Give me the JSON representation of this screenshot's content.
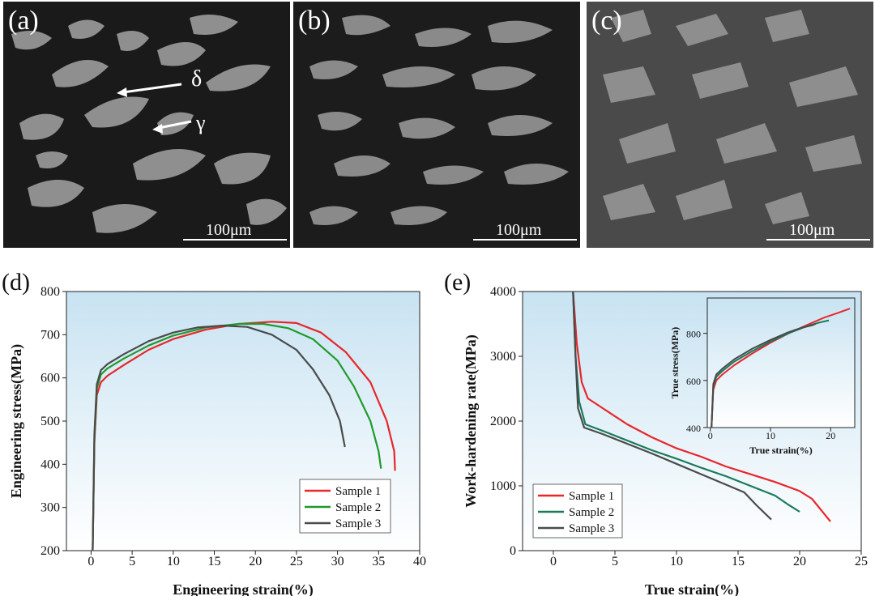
{
  "panels": {
    "a": {
      "label": "(a)",
      "annotations": [
        "δ",
        "γ"
      ],
      "scalebar": "100μm"
    },
    "b": {
      "label": "(b)",
      "scalebar": "100μm"
    },
    "c": {
      "label": "(c)",
      "scalebar": "100μm"
    },
    "d": {
      "label": "(d)"
    },
    "e": {
      "label": "(e)"
    }
  },
  "colors": {
    "sample1": "#e8262b",
    "sample2_d": "#1f9a2a",
    "sample2_e": "#1a7a5a",
    "sample3": "#4a4a4a",
    "plotbg_top": "#c8e3f2",
    "plotbg_bottom": "#ffffff"
  },
  "chart_data": [
    {
      "id": "d",
      "type": "line",
      "xlabel": "Engineering strain(%)",
      "ylabel": "Engineering stress(MPa)",
      "xlim": [
        -3,
        40
      ],
      "ylim": [
        200,
        800
      ],
      "xticks": [
        "0",
        "5",
        "10",
        "15",
        "20",
        "25",
        "30",
        "35",
        "40"
      ],
      "yticks": [
        "200",
        "300",
        "400",
        "500",
        "600",
        "700",
        "800"
      ],
      "legend": "bottom-right",
      "series": [
        {
          "name": "Sample 1",
          "color": "#e8262b",
          "points": [
            [
              0.2,
              200
            ],
            [
              0.4,
              450
            ],
            [
              0.7,
              560
            ],
            [
              1.2,
              590
            ],
            [
              2,
              605
            ],
            [
              4,
              630
            ],
            [
              7,
              665
            ],
            [
              10,
              690
            ],
            [
              14,
              712
            ],
            [
              18,
              725
            ],
            [
              22,
              730
            ],
            [
              25,
              727
            ],
            [
              28,
              705
            ],
            [
              31,
              660
            ],
            [
              34,
              590
            ],
            [
              36,
              500
            ],
            [
              36.9,
              430
            ],
            [
              37,
              385
            ]
          ]
        },
        {
          "name": "Sample 2",
          "color": "#1f9a2a",
          "points": [
            [
              0.2,
              200
            ],
            [
              0.4,
              460
            ],
            [
              0.7,
              575
            ],
            [
              1.2,
              608
            ],
            [
              2,
              622
            ],
            [
              4,
              645
            ],
            [
              7,
              675
            ],
            [
              10,
              698
            ],
            [
              14,
              717
            ],
            [
              18,
              725
            ],
            [
              21,
              725
            ],
            [
              24,
              715
            ],
            [
              27,
              690
            ],
            [
              30,
              640
            ],
            [
              32,
              580
            ],
            [
              34,
              500
            ],
            [
              35,
              430
            ],
            [
              35.3,
              390
            ]
          ]
        },
        {
          "name": "Sample 3",
          "color": "#4a4a4a",
          "points": [
            [
              0.2,
              200
            ],
            [
              0.4,
              470
            ],
            [
              0.7,
              585
            ],
            [
              1.2,
              618
            ],
            [
              2,
              632
            ],
            [
              4,
              655
            ],
            [
              7,
              685
            ],
            [
              10,
              705
            ],
            [
              13,
              717
            ],
            [
              16,
              721
            ],
            [
              19,
              718
            ],
            [
              22,
              700
            ],
            [
              25,
              665
            ],
            [
              27,
              620
            ],
            [
              29,
              560
            ],
            [
              30.3,
              500
            ],
            [
              30.9,
              440
            ]
          ]
        }
      ]
    },
    {
      "id": "e",
      "type": "line",
      "xlabel": "True strain(%)",
      "ylabel": "Work-hardening rate(MPa)",
      "xlim": [
        -2.5,
        25
      ],
      "ylim": [
        0,
        4000
      ],
      "xticks": [
        "0",
        "5",
        "10",
        "15",
        "20",
        "25"
      ],
      "yticks": [
        "0",
        "1000",
        "2000",
        "3000",
        "4000"
      ],
      "legend": "bottom-left",
      "series": [
        {
          "name": "Sample 1",
          "color": "#e8262b",
          "points": [
            [
              1.6,
              4000
            ],
            [
              1.9,
              3200
            ],
            [
              2.3,
              2600
            ],
            [
              2.8,
              2350
            ],
            [
              4,
              2200
            ],
            [
              6,
              1950
            ],
            [
              8,
              1750
            ],
            [
              10,
              1580
            ],
            [
              12,
              1450
            ],
            [
              14,
              1300
            ],
            [
              16,
              1180
            ],
            [
              18,
              1060
            ],
            [
              20,
              920
            ],
            [
              21,
              800
            ],
            [
              22.5,
              450
            ]
          ]
        },
        {
          "name": "Sample 2",
          "color": "#1a7a5a",
          "points": [
            [
              1.6,
              4000
            ],
            [
              1.8,
              3000
            ],
            [
              2.1,
              2300
            ],
            [
              2.6,
              1950
            ],
            [
              4,
              1850
            ],
            [
              6,
              1700
            ],
            [
              8,
              1550
            ],
            [
              10,
              1420
            ],
            [
              12,
              1280
            ],
            [
              14,
              1150
            ],
            [
              16,
              1000
            ],
            [
              18,
              850
            ],
            [
              19,
              720
            ],
            [
              20,
              600
            ]
          ]
        },
        {
          "name": "Sample 3",
          "color": "#4a4a4a",
          "points": [
            [
              1.6,
              4000
            ],
            [
              1.8,
              3000
            ],
            [
              2,
              2200
            ],
            [
              2.5,
              1900
            ],
            [
              4,
              1800
            ],
            [
              6,
              1650
            ],
            [
              8,
              1500
            ],
            [
              10,
              1340
            ],
            [
              12,
              1180
            ],
            [
              14,
              1020
            ],
            [
              15.5,
              900
            ],
            [
              16.5,
              700
            ],
            [
              17.7,
              480
            ]
          ]
        }
      ],
      "inset": {
        "xlabel": "True strain(%)",
        "ylabel": "True stress(MPa)",
        "xlim": [
          -0.5,
          24
        ],
        "ylim": [
          400,
          950
        ],
        "xticks": [
          "0",
          "10",
          "20"
        ],
        "yticks": [
          "400",
          "600",
          "800"
        ],
        "series": [
          {
            "name": "Sample 1",
            "color": "#e8262b",
            "points": [
              [
                0.2,
                400
              ],
              [
                0.5,
                560
              ],
              [
                1,
                600
              ],
              [
                2,
                625
              ],
              [
                4,
                665
              ],
              [
                7,
                715
              ],
              [
                10,
                760
              ],
              [
                13,
                800
              ],
              [
                16,
                835
              ],
              [
                19,
                868
              ],
              [
                21,
                885
              ],
              [
                23.2,
                905
              ]
            ]
          },
          {
            "name": "Sample 2",
            "color": "#1a7a5a",
            "points": [
              [
                0.2,
                400
              ],
              [
                0.5,
                575
              ],
              [
                1,
                615
              ],
              [
                2,
                640
              ],
              [
                4,
                680
              ],
              [
                7,
                725
              ],
              [
                10,
                765
              ],
              [
                13,
                800
              ],
              [
                16,
                830
              ],
              [
                18,
                845
              ],
              [
                19.7,
                855
              ]
            ]
          },
          {
            "name": "Sample 3",
            "color": "#4a4a4a",
            "points": [
              [
                0.2,
                400
              ],
              [
                0.5,
                585
              ],
              [
                1,
                625
              ],
              [
                2,
                650
              ],
              [
                4,
                690
              ],
              [
                7,
                735
              ],
              [
                10,
                772
              ],
              [
                13,
                805
              ],
              [
                15,
                822
              ],
              [
                17,
                835
              ],
              [
                17.5,
                840
              ]
            ]
          }
        ]
      }
    }
  ]
}
